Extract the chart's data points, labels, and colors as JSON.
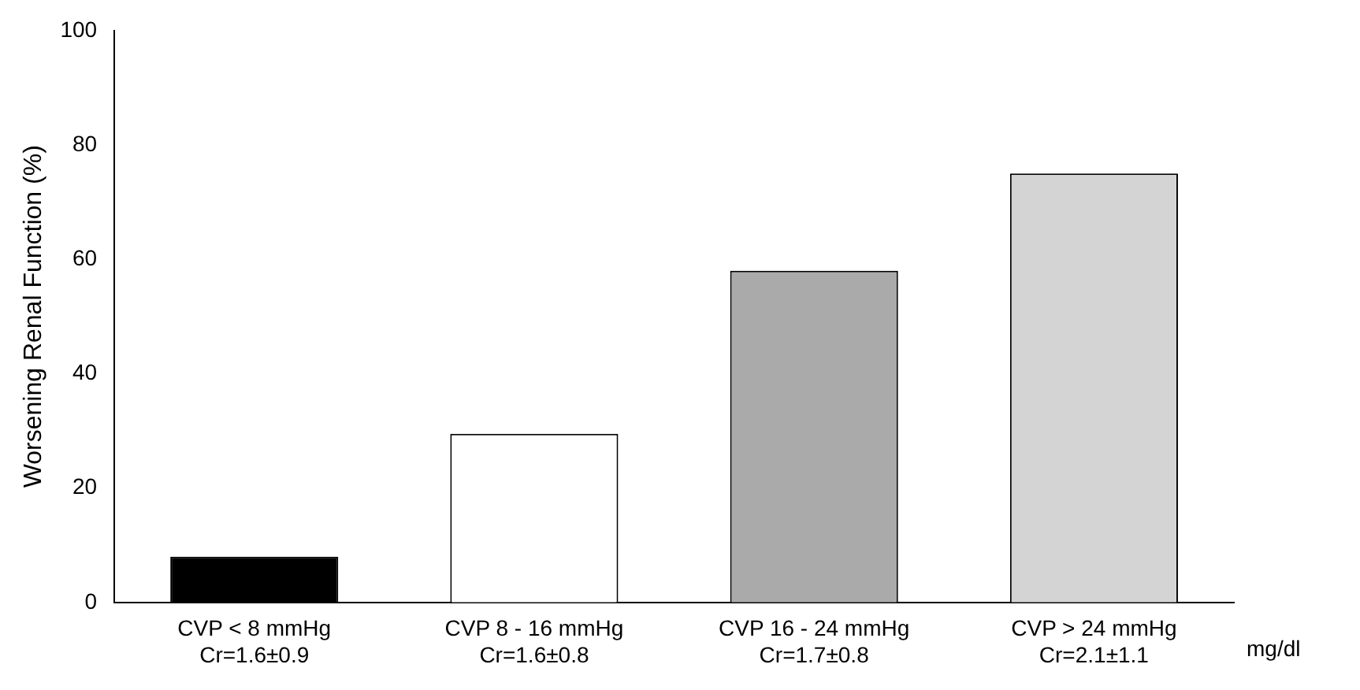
{
  "chart_data": {
    "type": "bar",
    "ylabel": "Worsening Renal Function (%)",
    "categories": [
      "CVP < 8 mmHg\nCr=1.6±0.9",
      "CVP 8 - 16 mmHg\nCr=1.6±0.8",
      "CVP 16 - 24 mmHg\nCr=1.7±0.8",
      "CVP > 24 mmHg\nCr=2.1±1.1"
    ],
    "values": [
      8,
      29.5,
      58,
      75
    ],
    "colors": [
      "#000000",
      "#ffffff",
      "#aaaaaa",
      "#d4d4d4"
    ],
    "ylim": [
      0,
      100
    ],
    "yticks": [
      0,
      20,
      40,
      60,
      80,
      100
    ],
    "grid": false,
    "legend": false,
    "annotations": [
      "mg/dl"
    ]
  }
}
